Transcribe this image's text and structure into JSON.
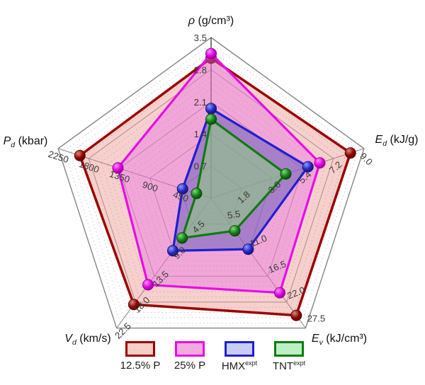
{
  "figure": {
    "kind": "pentagon radar chart of detonation properties",
    "background": "#ffffff"
  },
  "chart_data": {
    "type": "radar",
    "axes": [
      {
        "id": "rho",
        "title_sym": "ρ",
        "title_sub": "",
        "title_unit": "(g/cm³)",
        "max": 3.5,
        "min": 0,
        "ticks": [
          "0.7",
          "1.4",
          "2.1",
          "2.8",
          "3.5"
        ]
      },
      {
        "id": "Ed",
        "title_sym": "E",
        "title_sub": "d",
        "title_unit": "(kJ/g)",
        "max": 9.0,
        "min": 0,
        "ticks": [
          "1.8",
          "3.6",
          "5.4",
          "7.2",
          "9.0"
        ]
      },
      {
        "id": "Ev",
        "title_sym": "E",
        "title_sub": "v",
        "title_unit": "(kJ/cm³)",
        "max": 27.5,
        "min": 0,
        "ticks": [
          "5.5",
          "11.0",
          "16.5",
          "22.0",
          "27.5"
        ]
      },
      {
        "id": "Vd",
        "title_sym": "V",
        "title_sub": "d",
        "title_unit": "(km/s)",
        "max": 22.5,
        "min": 0,
        "ticks": [
          "4.5",
          "9.0",
          "13.5",
          "18.0",
          "22.5"
        ]
      },
      {
        "id": "Pd",
        "title_sym": "P",
        "title_sub": "d",
        "title_unit": "(kbar)",
        "max": 2250,
        "min": 0,
        "ticks": [
          "450",
          "900",
          "1350",
          "1800",
          "2250"
        ]
      }
    ],
    "series": [
      {
        "name": "12.5% P",
        "sup": "",
        "values": {
          "rho": 3.05,
          "Ed": 8.2,
          "Ev": 24.8,
          "Vd": 18.4,
          "Pd": 1930
        },
        "stroke": "#9b0000",
        "fill": "rgba(225,100,90,0.30)",
        "marker": [
          "#d98b7e",
          "#8f0000",
          "#570000"
        ],
        "legend_fill": "#f7cdc8"
      },
      {
        "name": "25% P",
        "sup": "",
        "values": {
          "rho": 3.15,
          "Ed": 6.4,
          "Ev": 20.0,
          "Vd": 15.0,
          "Pd": 1370
        },
        "stroke": "#e60ee6",
        "fill": "rgba(230,110,230,0.42)",
        "marker": [
          "#ff8cff",
          "#dd00dd",
          "#8a008a"
        ],
        "legend_fill": "#f3aadd"
      },
      {
        "name": "HMX",
        "sup": "expt",
        "values": {
          "rho": 1.95,
          "Ed": 5.7,
          "Ev": 10.8,
          "Vd": 9.1,
          "Pd": 420
        },
        "stroke": "#2020cb",
        "fill": "rgba(90,85,185,0.48)",
        "marker": [
          "#8f9bff",
          "#2525c0",
          "#10106e"
        ],
        "legend_fill": "#c8cef8"
      },
      {
        "name": "TNT",
        "sup": "expt",
        "values": {
          "rho": 1.72,
          "Ed": 4.4,
          "Ev": 6.9,
          "Vd": 6.9,
          "Pd": 215
        },
        "stroke": "#0e7c0e",
        "fill": "rgba(135,215,115,0.50)",
        "marker": [
          "#7ed87e",
          "#128012",
          "#053f05"
        ],
        "legend_fill": "#bdefc4"
      }
    ],
    "grid": {
      "major_levels": 5,
      "minor_per_major": 5,
      "ring_color": "#9b9b9b",
      "minor_ring_color": "#c9b4b4",
      "spoke_color": "#8a8a8a",
      "outer_color": "#858585",
      "vertical_axis_color": "#3c3c3c",
      "tick_label_color": "#3a3a3a",
      "legend_position": "bottom"
    }
  }
}
